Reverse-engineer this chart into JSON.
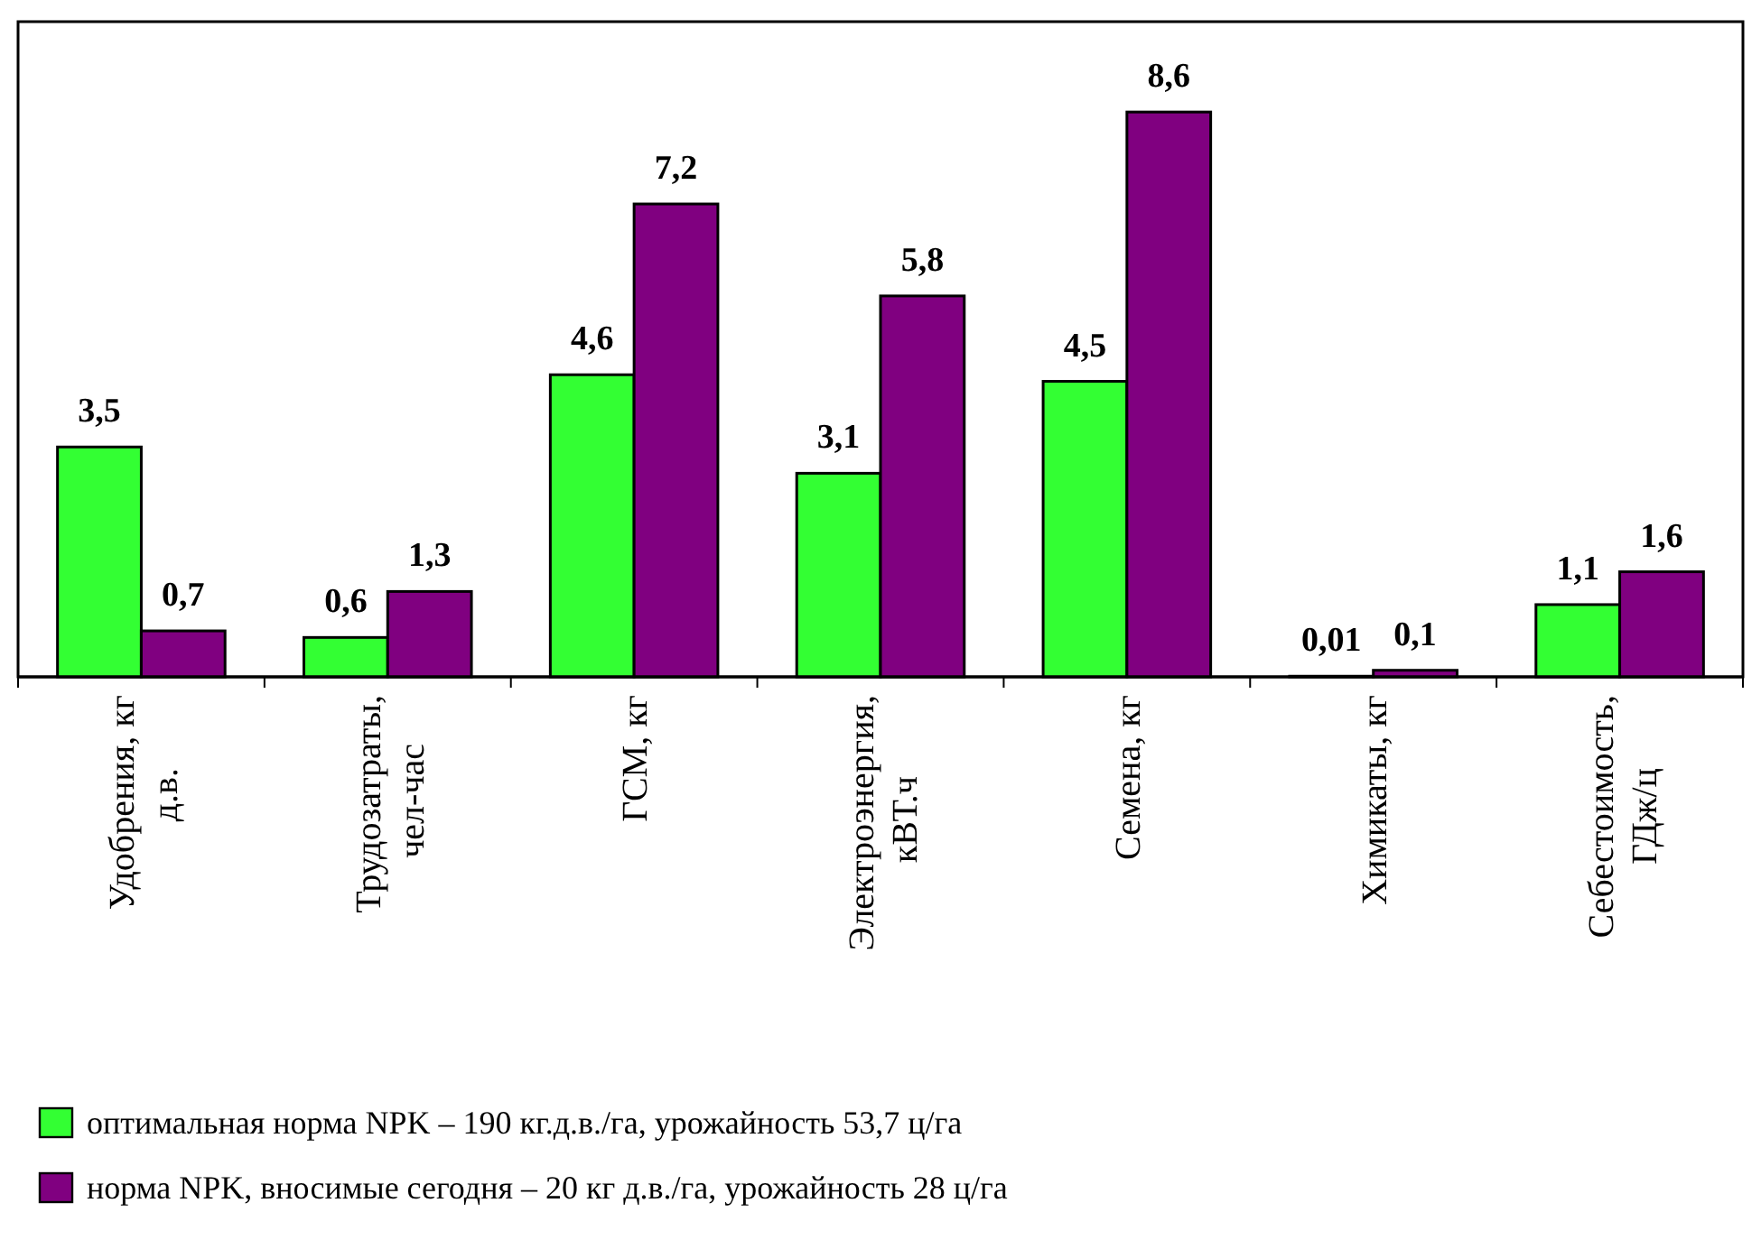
{
  "chart_data": {
    "type": "bar",
    "categories": [
      "Удобрения, кг\nд.в.",
      "Трудозатраты,\nчел-час",
      "ГСМ, кг",
      "Электроэнергия,\nкВТ.ч",
      "Семена, кг",
      "Химикаты, кг",
      "Себестоимость,\nГДж/ц"
    ],
    "series": [
      {
        "name": "оптимальная норма NPK – 190 кг.д.в./га, урожайность 53,7 ц/га",
        "color": "#33ff33",
        "values": [
          3.5,
          0.6,
          4.6,
          3.1,
          4.5,
          0.01,
          1.1
        ],
        "value_labels": [
          "3,5",
          "0,6",
          "4,6",
          "3,1",
          "4,5",
          "0,01",
          "1,1"
        ]
      },
      {
        "name": "норма NPK, вносимые сегодня – 20 кг д.в./га, урожайность 28 ц/га",
        "color": "#800080",
        "values": [
          0.7,
          1.3,
          7.2,
          5.8,
          8.6,
          0.1,
          1.6
        ],
        "value_labels": [
          "0,7",
          "1,3",
          "7,2",
          "5,8",
          "8,6",
          "0,1",
          "1,6"
        ]
      }
    ],
    "legend": "bottom",
    "tick_labels": "x"
  }
}
